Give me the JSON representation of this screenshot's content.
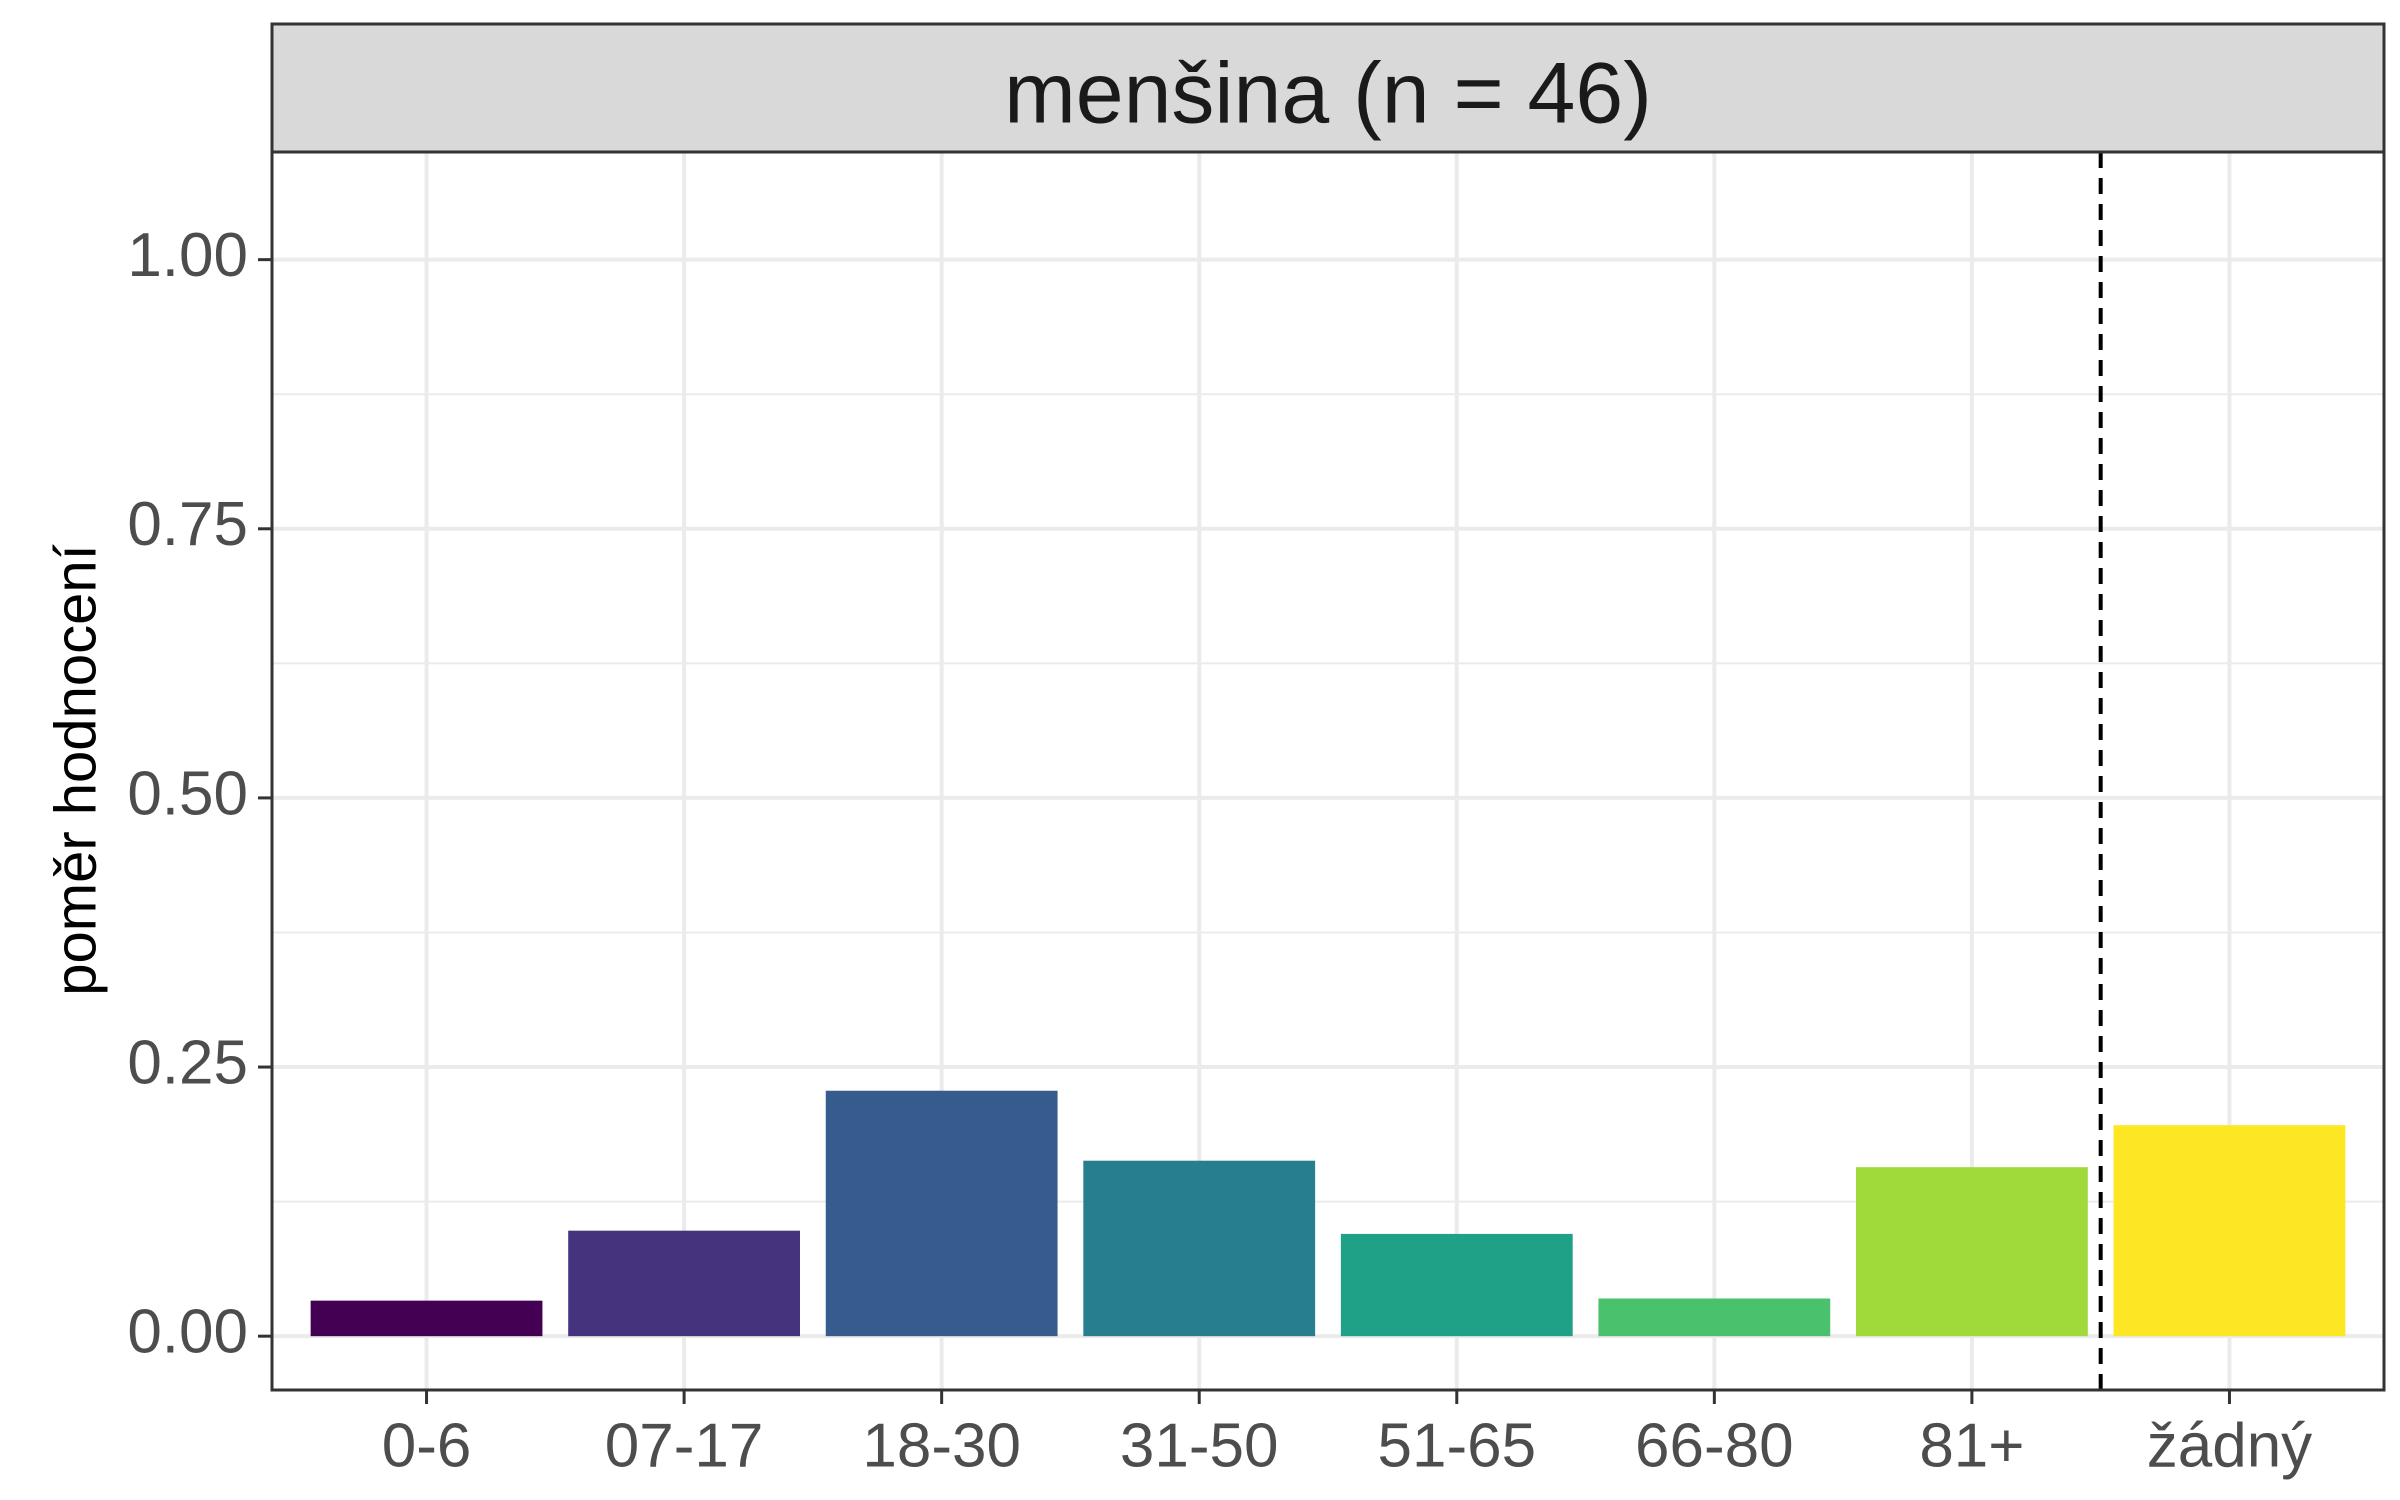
{
  "chart_data": {
    "type": "bar",
    "facet_title": "menšina (n = 46)",
    "xlabel": "",
    "ylabel": "poměr hodnocení",
    "categories": [
      "0-6",
      "07-17",
      "18-30",
      "31-50",
      "51-65",
      "66-80",
      "81+",
      "žádný"
    ],
    "values": [
      0.033,
      0.098,
      0.228,
      0.163,
      0.095,
      0.035,
      0.157,
      0.196
    ],
    "colors": [
      "#440154",
      "#46337E",
      "#365C8D",
      "#277F8E",
      "#1FA187",
      "#4AC16D",
      "#9FDA3A",
      "#FDE725"
    ],
    "ylim": [
      -0.05,
      1.1
    ],
    "yticks": [
      0.0,
      0.25,
      0.5,
      0.75,
      1.0
    ],
    "ytick_labels": [
      "0.00",
      "0.25",
      "0.50",
      "0.75",
      "1.00"
    ],
    "grid": true,
    "separator_after_category_index": 6,
    "separator_style": "dashed"
  }
}
